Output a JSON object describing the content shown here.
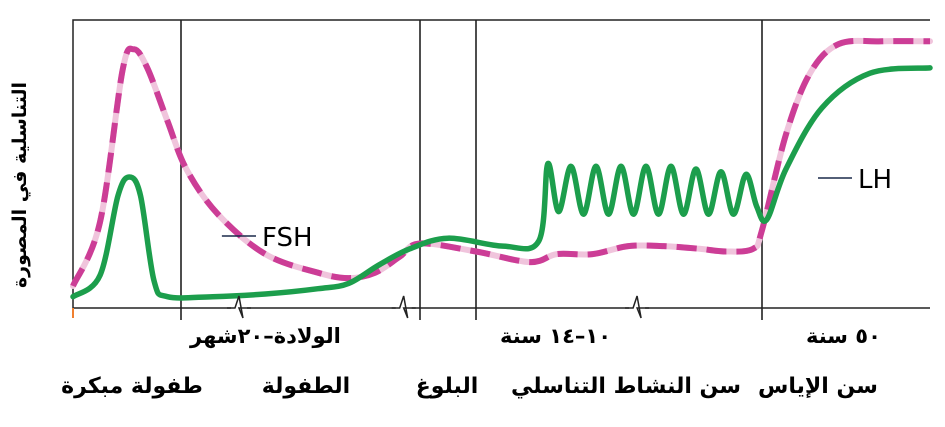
{
  "chart_data": {
    "type": "line",
    "title": "",
    "ylabel": "التناسلية في المصورة",
    "xlabel": "",
    "x_ticks": [
      {
        "x": 0,
        "label": "الولادة–٢٠شهر"
      },
      {
        "x": 1.6,
        "label": "١٠–١٤ سنة"
      },
      {
        "x": 3.0,
        "label": "٥٠ سنة"
      }
    ],
    "stages": [
      {
        "from": 0,
        "to": 1.0,
        "label": "طفولة مبكرة"
      },
      {
        "from": 1.0,
        "to": 1.6,
        "label": "الطفولة"
      },
      {
        "from": 1.6,
        "to": 1.7,
        "label": "البلوغ"
      },
      {
        "from": 1.7,
        "to": 3.0,
        "label": "سن النشاط التناسلي"
      },
      {
        "from": 3.0,
        "to": 3.7,
        "label": "سن الإياس"
      }
    ],
    "vertical_lines_x": [
      0,
      0.48,
      1.5,
      1.6,
      3.0,
      3.7
    ],
    "axis_breaks_x": [
      0.7,
      1.42,
      2.3
    ],
    "xlim": [
      0,
      3.7
    ],
    "ylim": [
      0,
      100
    ],
    "series": [
      {
        "name": "FSH",
        "style": "dashed",
        "color": "#cc3d96",
        "dash_color": "#f0c4dc",
        "points": [
          [
            0.0,
            6
          ],
          [
            0.12,
            30
          ],
          [
            0.22,
            87
          ],
          [
            0.27,
            95
          ],
          [
            0.33,
            88
          ],
          [
            0.42,
            68
          ],
          [
            0.5,
            50
          ],
          [
            0.62,
            33
          ],
          [
            0.8,
            18
          ],
          [
            1.0,
            11
          ],
          [
            1.15,
            9
          ],
          [
            1.28,
            11
          ],
          [
            1.4,
            17
          ],
          [
            1.5,
            22
          ],
          [
            1.6,
            19
          ],
          [
            1.7,
            15
          ],
          [
            1.85,
            18
          ],
          [
            2.05,
            18
          ],
          [
            2.25,
            21
          ],
          [
            2.45,
            21
          ],
          [
            2.65,
            20
          ],
          [
            2.8,
            19
          ],
          [
            2.95,
            20
          ],
          [
            3.0,
            27
          ],
          [
            3.1,
            63
          ],
          [
            3.2,
            86
          ],
          [
            3.32,
            97
          ],
          [
            3.5,
            98
          ],
          [
            3.7,
            98
          ]
        ]
      },
      {
        "name": "LH",
        "style": "solid",
        "color": "#1c9e4c",
        "points": [
          [
            0.0,
            2
          ],
          [
            0.12,
            10
          ],
          [
            0.2,
            40
          ],
          [
            0.25,
            47
          ],
          [
            0.3,
            40
          ],
          [
            0.36,
            8
          ],
          [
            0.42,
            2
          ],
          [
            0.6,
            2
          ],
          [
            0.8,
            3
          ],
          [
            1.0,
            5
          ],
          [
            1.15,
            7
          ],
          [
            1.3,
            14
          ],
          [
            1.45,
            20
          ],
          [
            1.55,
            24
          ],
          [
            1.65,
            21
          ],
          [
            1.75,
            23
          ],
          [
            1.8,
            52
          ],
          [
            1.86,
            34
          ],
          [
            1.93,
            51
          ],
          [
            2.0,
            33
          ],
          [
            2.07,
            51
          ],
          [
            2.14,
            33
          ],
          [
            2.21,
            51
          ],
          [
            2.28,
            33
          ],
          [
            2.35,
            51
          ],
          [
            2.42,
            33
          ],
          [
            2.49,
            51
          ],
          [
            2.56,
            33
          ],
          [
            2.63,
            50
          ],
          [
            2.7,
            33
          ],
          [
            2.77,
            49
          ],
          [
            2.84,
            33
          ],
          [
            2.91,
            48
          ],
          [
            2.97,
            36
          ],
          [
            3.02,
            31
          ],
          [
            3.1,
            50
          ],
          [
            3.25,
            73
          ],
          [
            3.45,
            86
          ],
          [
            3.7,
            88
          ]
        ]
      }
    ]
  }
}
